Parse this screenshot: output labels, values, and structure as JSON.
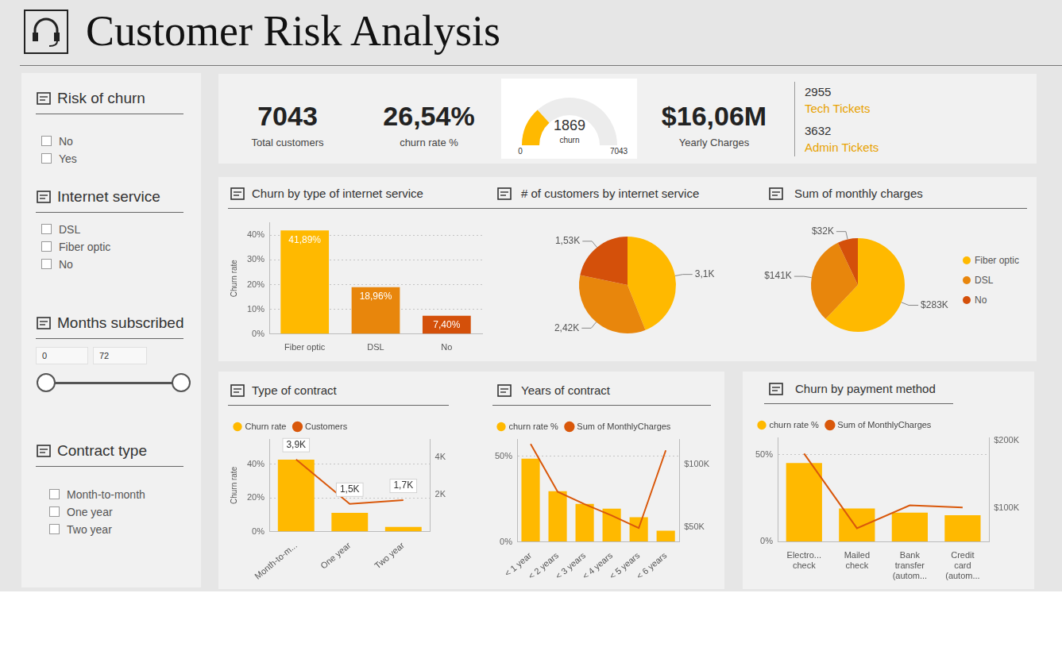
{
  "header": {
    "title": "Customer Risk Analysis"
  },
  "filters": [
    {
      "title": "Risk of churn",
      "options": [
        "No",
        "Yes"
      ]
    },
    {
      "title": "Internet service",
      "options": [
        "DSL",
        "Fiber optic",
        "No"
      ]
    },
    {
      "title": "Months subscribed",
      "range": [
        0,
        72
      ]
    },
    {
      "title": "Contract type",
      "options": [
        "Month-to-month",
        "One year",
        "Two year"
      ]
    }
  ],
  "kpis": [
    {
      "value": "7043",
      "label": "Total customers"
    },
    {
      "value": "26,54%",
      "label": "churn rate %"
    },
    {
      "type": "gauge",
      "value": 1869,
      "label": "churn",
      "min": 0,
      "max": 7043
    },
    {
      "value": "$16,06M",
      "label": "Yearly Charges"
    }
  ],
  "tickets": [
    {
      "value": "2955",
      "label": "Tech Tickets"
    },
    {
      "value": "3632",
      "label": "Admin Tickets"
    }
  ],
  "chart_data": [
    {
      "type": "bar",
      "title": "Churn by type of internet service",
      "categories": [
        "Fiber optic",
        "DSL",
        "No"
      ],
      "values": [
        41.89,
        18.96,
        7.4
      ],
      "value_labels": [
        "41,89%",
        "18,96%",
        "7,40%"
      ],
      "colors": [
        "#FFB900",
        "#E8860C",
        "#D4500A"
      ],
      "y_label": "Churn rate",
      "ylim": [
        0,
        45
      ],
      "yticks": [
        {
          "value": 0,
          "label": "0%"
        },
        {
          "value": 10,
          "label": "10%"
        },
        {
          "value": 20,
          "label": "20%"
        },
        {
          "value": 30,
          "label": "30%"
        },
        {
          "value": 40,
          "label": "40%"
        }
      ],
      "grid": true,
      "data_labels": true
    },
    {
      "type": "pie",
      "title": "# of customers by internet service",
      "categories": [
        "Fiber optic",
        "DSL",
        "No"
      ],
      "values": [
        3100,
        2420,
        1530
      ],
      "value_labels": [
        "3,1K",
        "2,42K",
        "1,53K"
      ],
      "colors": [
        "#FFB900",
        "#E8860C",
        "#D4500A"
      ],
      "data_labels": true
    },
    {
      "type": "pie",
      "title": "Sum of monthly charges",
      "categories": [
        "Fiber optic",
        "DSL",
        "No"
      ],
      "values": [
        283000,
        141000,
        32000
      ],
      "value_labels": [
        "$283K",
        "$141K",
        "$32K"
      ],
      "colors": [
        "#FFB900",
        "#E8860C",
        "#D4500A"
      ],
      "data_labels": true,
      "legend": "right"
    },
    {
      "type": "bar",
      "title": "Type of contract",
      "categories": [
        "Month-to-m...",
        "One year",
        "Two year"
      ],
      "y_label": "Churn rate",
      "ylim": [
        0,
        55
      ],
      "yticks": [
        {
          "value": 0,
          "label": "0%"
        },
        {
          "value": 20,
          "label": "20%"
        },
        {
          "value": 40,
          "label": "40%"
        }
      ],
      "y2lim": [
        0,
        5000
      ],
      "y2ticks": [
        {
          "value": 2000,
          "label": "2K"
        },
        {
          "value": 4000,
          "label": "4K"
        }
      ],
      "grid": true,
      "legend": "top-left",
      "series": [
        {
          "name": "Churn rate",
          "type": "bar",
          "color": "#FFB900",
          "values": [
            42.71,
            11.27,
            2.83
          ]
        },
        {
          "name": "Customers",
          "type": "line",
          "color": "#D9580B",
          "axis": "y2",
          "values": [
            3900,
            1500,
            1700
          ],
          "value_labels": [
            "3,9K",
            "1,5K",
            "1,7K"
          ],
          "data_labels": true
        }
      ]
    },
    {
      "type": "bar",
      "title": "Years of contract",
      "categories": [
        "< 1 year",
        "< 2 years",
        "< 3 years",
        "< 4 years",
        "< 5 years",
        "< 6 years"
      ],
      "ylim": [
        0,
        60
      ],
      "yticks": [
        {
          "value": 0,
          "label": "0%"
        },
        {
          "value": 50,
          "label": "50%"
        }
      ],
      "y2lim": [
        38000,
        120000
      ],
      "y2ticks": [
        {
          "value": 50000,
          "label": "$50K"
        },
        {
          "value": 100000,
          "label": "$100K"
        }
      ],
      "grid": true,
      "legend": "top-left",
      "series": [
        {
          "name": "churn rate %",
          "type": "bar",
          "color": "#FFB900",
          "values": [
            48.6,
            29.6,
            22.2,
            19.4,
            14.4,
            6.5
          ]
        },
        {
          "name": "Sum of MonthlyCharges",
          "type": "line",
          "color": "#D9580B",
          "axis": "y2",
          "values": [
            116000,
            78000,
            68000,
            59000,
            49000,
            111000
          ]
        }
      ]
    },
    {
      "type": "bar",
      "title": "Churn by payment method",
      "categories": [
        "Electro... check",
        "Mailed check",
        "Bank transfer (autom...",
        "Credit card (autom..."
      ],
      "ylim": [
        0,
        60
      ],
      "yticks": [
        {
          "value": 0,
          "label": "0%"
        },
        {
          "value": 50,
          "label": "50%"
        }
      ],
      "y2lim": [
        50000,
        205000
      ],
      "y2ticks": [
        {
          "value": 100000,
          "label": "$100K"
        },
        {
          "value": 200000,
          "label": "$200K"
        }
      ],
      "grid": true,
      "legend": "top-left",
      "series": [
        {
          "name": "churn rate %",
          "type": "bar",
          "color": "#FFB900",
          "values": [
            45.29,
            19.11,
            16.71,
            15.24
          ]
        },
        {
          "name": "Sum of MonthlyCharges",
          "type": "line",
          "color": "#D9580B",
          "axis": "y2",
          "values": [
            181000,
            70000,
            104000,
            101000
          ]
        }
      ]
    }
  ]
}
